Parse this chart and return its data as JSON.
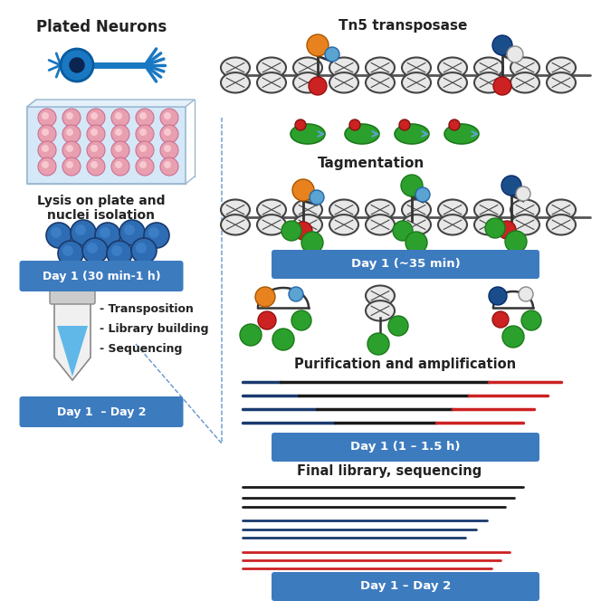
{
  "bg_color": "#ffffff",
  "border_color": "#c8c8c8",
  "blue_btn_color": "#3d7bbf",
  "blue_btn_text": "#ffffff",
  "left": {
    "plated_neurons": "Plated Neurons",
    "lysis_text": "Lysis on plate and\nnuclei isolation",
    "day1_lysis": "Day 1 (30 min-1 h)",
    "tube_labels": [
      "- Transposition",
      "- Library building",
      "- Sequencing"
    ],
    "day1_day2": "Day 1  – Day 2"
  },
  "right": {
    "tn5": "Tn5 transposase",
    "tagmentation": "Tagmentation",
    "day1_35": "Day 1 (~35 min)",
    "purification": "Purification and amplification",
    "day1_15": "Day 1 (1 – 1.5 h)",
    "final_lib": "Final library, sequencing",
    "day1_day2": "Day 1 – Day 2"
  },
  "colors": {
    "neuron_blue": "#1a78c2",
    "nuclei_blue": "#2e6db4",
    "nuclei_light": "#4a90d9",
    "orange": "#e8821e",
    "red": "#cc2222",
    "green": "#2ca02c",
    "dark_blue": "#1a4e8a",
    "light_blue": "#5ba3d0",
    "white_circle": "#e8e8e8",
    "pink": "#e8a0b0",
    "plate_body": "#d8eaf8",
    "plate_edge": "#aabbd0",
    "nuc_gray": "#666666",
    "line_navy": "#1a3a6e",
    "line_red": "#cc2222",
    "line_black": "#1a1a1a"
  }
}
